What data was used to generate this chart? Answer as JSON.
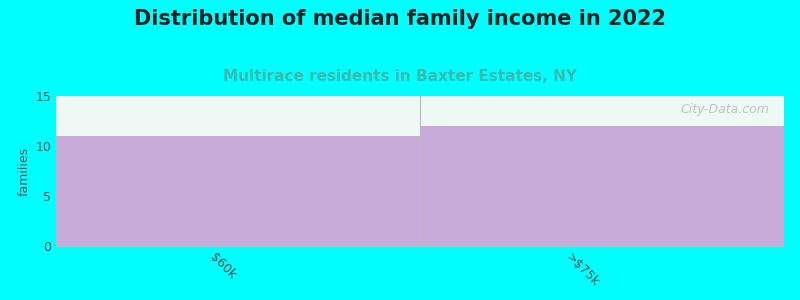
{
  "title": "Distribution of median family income in 2022",
  "subtitle": "Multirace residents in Baxter Estates, NY",
  "categories": [
    "$60k",
    ">$75k"
  ],
  "values": [
    11,
    12
  ],
  "bar_color": "#C9ABD9",
  "background_color": "#00FFFF",
  "plot_bg_color": "#EEF8F4",
  "ylabel": "families",
  "ylim": [
    0,
    15
  ],
  "yticks": [
    0,
    5,
    10,
    15
  ],
  "title_fontsize": 15,
  "subtitle_fontsize": 11,
  "subtitle_color": "#3ABAAF",
  "title_color": "#222222",
  "watermark": "City-Data.com",
  "tick_label_color": "#555555",
  "tick_label_fontsize": 9,
  "xtick_rotation": -45
}
